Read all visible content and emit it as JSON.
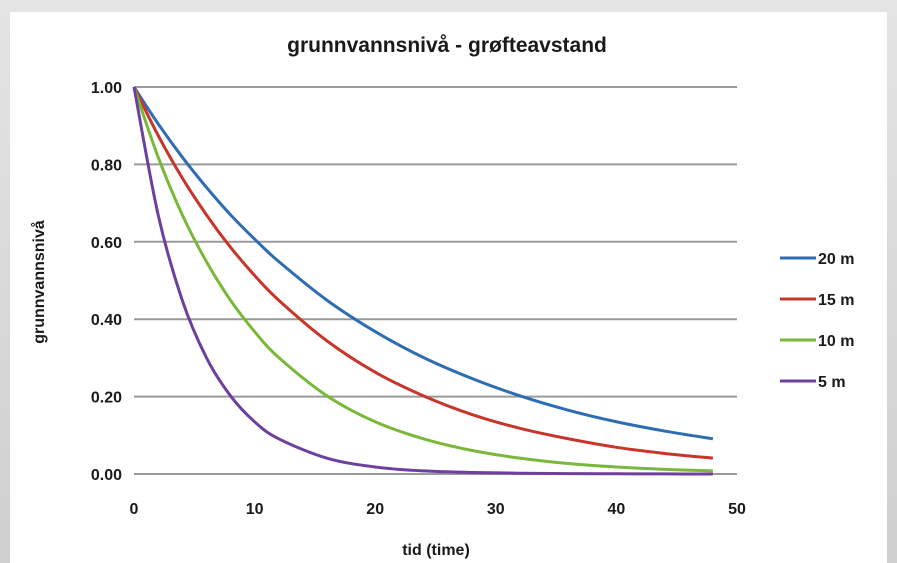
{
  "chart_data": {
    "type": "line",
    "title": "grunnvannsnivå - grøfteavstand",
    "xlabel": "tid (time)",
    "ylabel": "grunnvannsnivå",
    "xlim": [
      0,
      50
    ],
    "ylim": [
      0,
      1
    ],
    "x_ticks": [
      "0",
      "10",
      "20",
      "30",
      "40",
      "50"
    ],
    "y_ticks": [
      "0.00",
      "0.20",
      "0.40",
      "0.60",
      "0.80",
      "1.00"
    ],
    "grid": "horizontal",
    "legend_position": "right",
    "x": [
      0,
      2,
      4,
      6,
      8,
      10,
      12,
      16,
      20,
      24,
      28,
      32,
      36,
      40,
      44,
      48
    ],
    "series": [
      {
        "name": "20 m",
        "color": "#2e6db4",
        "values": [
          1.0,
          0.905,
          0.819,
          0.741,
          0.67,
          0.607,
          0.549,
          0.449,
          0.368,
          0.301,
          0.247,
          0.202,
          0.165,
          0.135,
          0.111,
          0.091
        ]
      },
      {
        "name": "15 m",
        "color": "#c8352b",
        "values": [
          1.0,
          0.875,
          0.765,
          0.67,
          0.586,
          0.513,
          0.449,
          0.344,
          0.263,
          0.202,
          0.154,
          0.118,
          0.091,
          0.069,
          0.053,
          0.041
        ]
      },
      {
        "name": "10 m",
        "color": "#7ab83a",
        "values": [
          1.0,
          0.819,
          0.67,
          0.549,
          0.449,
          0.368,
          0.301,
          0.202,
          0.135,
          0.091,
          0.061,
          0.041,
          0.027,
          0.018,
          0.012,
          0.008
        ]
      },
      {
        "name": "5 m",
        "color": "#6f3fa0",
        "values": [
          1.0,
          0.67,
          0.449,
          0.301,
          0.202,
          0.135,
          0.091,
          0.041,
          0.018,
          0.008,
          0.004,
          0.002,
          0.001,
          0.0005,
          0.0002,
          0.0001
        ]
      }
    ]
  }
}
